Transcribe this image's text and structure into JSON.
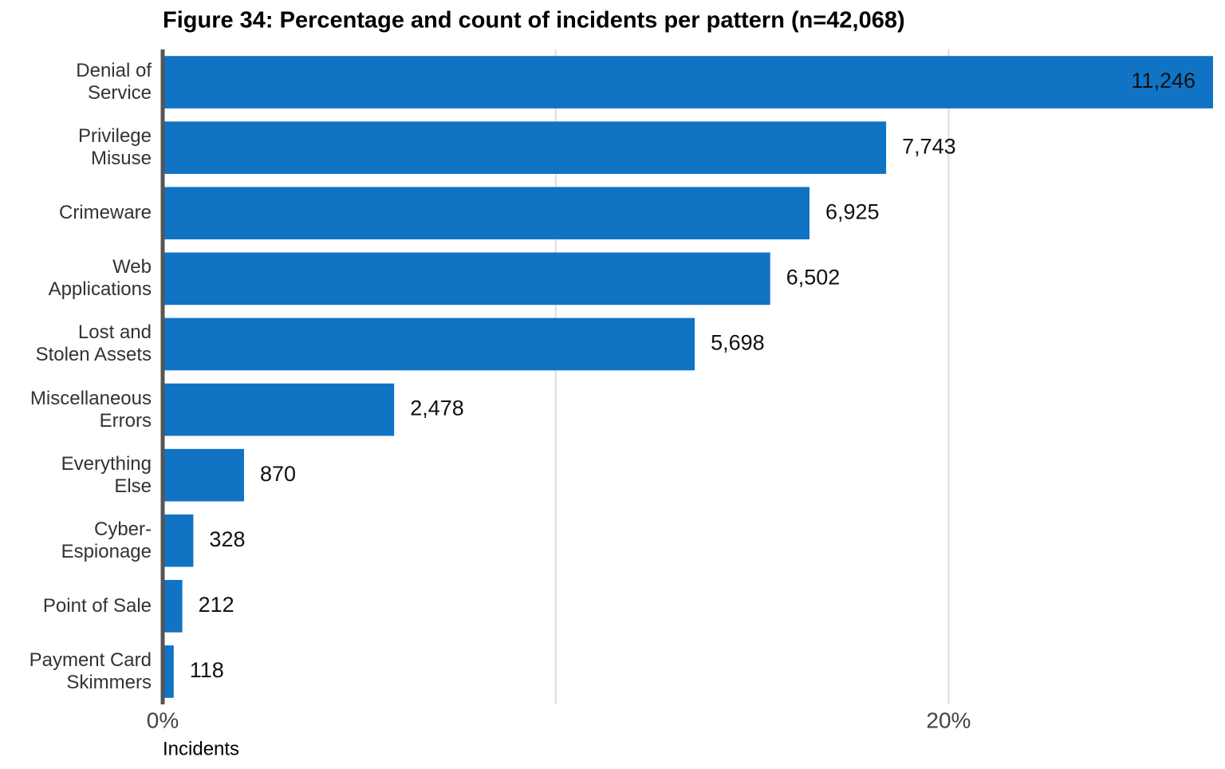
{
  "chart_data": {
    "type": "bar",
    "orientation": "horizontal",
    "title": "Figure 34: Percentage and count of incidents per pattern (n=42,068)",
    "x_label": "Incidents",
    "categories": [
      "Denial of\nService",
      "Privilege\nMisuse",
      "Crimeware",
      "Web\nApplications",
      "Lost and\nStolen Assets",
      "Miscellaneous\nErrors",
      "Everything\nElse",
      "Cyber-\nEspionage",
      "Point of Sale",
      "Payment Card\nSkimmers"
    ],
    "values": [
      26.73,
      18.41,
      16.46,
      15.46,
      13.54,
      5.89,
      2.07,
      0.78,
      0.5,
      0.28
    ],
    "value_labels": [
      "11,246",
      "7,743",
      "6,925",
      "6,502",
      "5,698",
      "2,478",
      "870",
      "328",
      "212",
      "118"
    ],
    "color": "#1073c4",
    "xlim": [
      0,
      26.73
    ],
    "xticks": [
      {
        "value": 0,
        "label": "0%"
      },
      {
        "value": 10,
        "label": null
      },
      {
        "value": 20,
        "label": "20%"
      }
    ],
    "grid": true
  }
}
